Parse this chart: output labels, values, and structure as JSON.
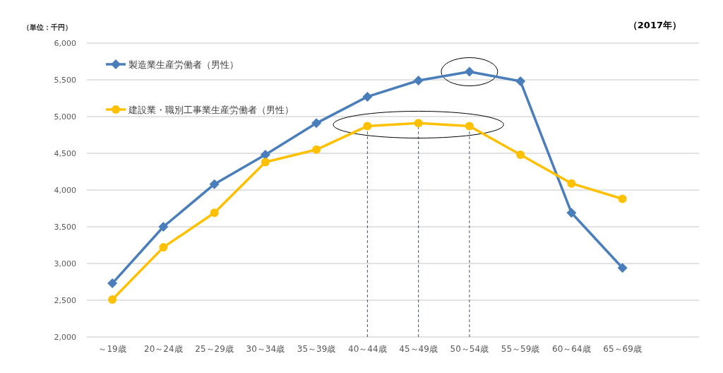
{
  "chart_data": {
    "type": "line",
    "ylabel": "（単位：千円）",
    "annotations": [
      "（2017年）"
    ],
    "categories": [
      "～19歳",
      "20～24歳",
      "25～29歳",
      "30～34歳",
      "35～39歳",
      "40～44歳",
      "45～49歳",
      "50～54歳",
      "55～59歳",
      "60～64歳",
      "65～69歳"
    ],
    "series": [
      {
        "name": "製造業生産労働者（男性）",
        "color": "#4a7ebb",
        "marker": "diamond",
        "values": [
          2730,
          3500,
          4080,
          4480,
          4910,
          5270,
          5490,
          5610,
          5480,
          3690,
          2940
        ]
      },
      {
        "name": "建設業・職別工事業生産労働者（男性）",
        "color": "#ffc000",
        "marker": "circle",
        "values": [
          2510,
          3220,
          3690,
          4380,
          4550,
          4870,
          4910,
          4870,
          4480,
          4090,
          3880
        ]
      }
    ],
    "ylim": [
      2000,
      6000
    ],
    "yticks": [
      {
        "value": 2000,
        "label": "2,000"
      },
      {
        "value": 2500,
        "label": "2,500"
      },
      {
        "value": 3000,
        "label": "3,000"
      },
      {
        "value": 3500,
        "label": "3,500"
      },
      {
        "value": 4000,
        "label": "4,000"
      },
      {
        "value": 4500,
        "label": "4,500"
      },
      {
        "value": 5000,
        "label": "5,000"
      },
      {
        "value": 5500,
        "label": "5,500"
      },
      {
        "value": 6000,
        "label": "6,000"
      }
    ],
    "ref_lines": [
      {
        "axis": "x",
        "value": "40～44歳",
        "color": "#44546a",
        "line_style": "dashed"
      },
      {
        "axis": "x",
        "value": "45～49歳",
        "color": "#44546a",
        "line_style": "dashed"
      },
      {
        "axis": "x",
        "value": "50～54歳",
        "color": "#44546a",
        "line_style": "dashed"
      }
    ],
    "grid": "y",
    "legend": "top left",
    "line_style": "solid"
  }
}
